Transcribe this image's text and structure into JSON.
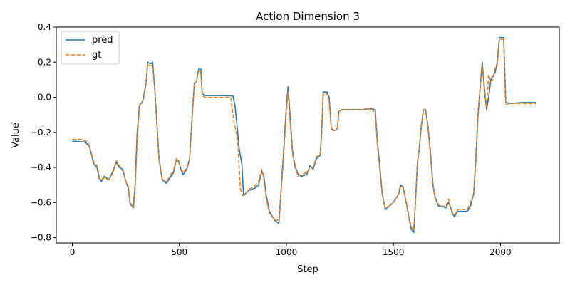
{
  "chart_data": {
    "type": "line",
    "title": "Action Dimension 3",
    "xlabel": "Step",
    "ylabel": "Value",
    "xlim": [
      -75,
      2275
    ],
    "ylim": [
      -0.83,
      0.4
    ],
    "xticks": [
      0,
      500,
      1000,
      1500,
      2000
    ],
    "yticks": [
      -0.8,
      -0.6,
      -0.4,
      -0.2,
      0.0,
      0.2,
      0.4
    ],
    "xtick_labels": [
      "0",
      "500",
      "1000",
      "1500",
      "2000"
    ],
    "ytick_labels": [
      "−0.8",
      "−0.6",
      "−0.4",
      "−0.2",
      "0.0",
      "0.2",
      "0.4"
    ],
    "grid": false,
    "legend_position": "upper-left",
    "series": [
      {
        "name": "pred",
        "color": "#1f77b4",
        "style": "solid",
        "points": [
          [
            0,
            -0.25
          ],
          [
            60,
            -0.255
          ],
          [
            80,
            -0.28
          ],
          [
            100,
            -0.38
          ],
          [
            115,
            -0.4
          ],
          [
            125,
            -0.46
          ],
          [
            135,
            -0.48
          ],
          [
            150,
            -0.45
          ],
          [
            170,
            -0.47
          ],
          [
            190,
            -0.42
          ],
          [
            205,
            -0.37
          ],
          [
            220,
            -0.4
          ],
          [
            235,
            -0.41
          ],
          [
            250,
            -0.48
          ],
          [
            262,
            -0.52
          ],
          [
            270,
            -0.61
          ],
          [
            280,
            -0.62
          ],
          [
            285,
            -0.63
          ],
          [
            293,
            -0.5
          ],
          [
            303,
            -0.2
          ],
          [
            313,
            -0.05
          ],
          [
            330,
            -0.02
          ],
          [
            345,
            0.09
          ],
          [
            352,
            0.2
          ],
          [
            365,
            0.19
          ],
          [
            375,
            0.2
          ],
          [
            385,
            0.05
          ],
          [
            395,
            -0.15
          ],
          [
            405,
            -0.35
          ],
          [
            420,
            -0.47
          ],
          [
            440,
            -0.49
          ],
          [
            460,
            -0.45
          ],
          [
            472,
            -0.43
          ],
          [
            485,
            -0.36
          ],
          [
            495,
            -0.36
          ],
          [
            510,
            -0.42
          ],
          [
            518,
            -0.44
          ],
          [
            535,
            -0.41
          ],
          [
            548,
            -0.35
          ],
          [
            560,
            -0.1
          ],
          [
            570,
            0.08
          ],
          [
            580,
            0.09
          ],
          [
            590,
            0.16
          ],
          [
            600,
            0.16
          ],
          [
            607,
            0.02
          ],
          [
            620,
            0.01
          ],
          [
            650,
            0.01
          ],
          [
            700,
            0.01
          ],
          [
            750,
            0.008
          ],
          [
            760,
            -0.05
          ],
          [
            770,
            -0.17
          ],
          [
            780,
            -0.3
          ],
          [
            792,
            -0.38
          ],
          [
            800,
            -0.56
          ],
          [
            825,
            -0.53
          ],
          [
            850,
            -0.52
          ],
          [
            870,
            -0.5
          ],
          [
            885,
            -0.42
          ],
          [
            895,
            -0.45
          ],
          [
            905,
            -0.55
          ],
          [
            920,
            -0.65
          ],
          [
            930,
            -0.67
          ],
          [
            945,
            -0.7
          ],
          [
            955,
            -0.71
          ],
          [
            965,
            -0.72
          ],
          [
            985,
            -0.35
          ],
          [
            1000,
            -0.05
          ],
          [
            1008,
            0.06
          ],
          [
            1018,
            -0.12
          ],
          [
            1028,
            -0.3
          ],
          [
            1040,
            -0.39
          ],
          [
            1055,
            -0.44
          ],
          [
            1070,
            -0.45
          ],
          [
            1095,
            -0.44
          ],
          [
            1110,
            -0.39
          ],
          [
            1125,
            -0.41
          ],
          [
            1140,
            -0.35
          ],
          [
            1158,
            -0.33
          ],
          [
            1165,
            -0.2
          ],
          [
            1172,
            0.03
          ],
          [
            1190,
            0.03
          ],
          [
            1200,
            0.0
          ],
          [
            1210,
            -0.18
          ],
          [
            1225,
            -0.19
          ],
          [
            1238,
            -0.18
          ],
          [
            1245,
            -0.08
          ],
          [
            1260,
            -0.07
          ],
          [
            1350,
            -0.07
          ],
          [
            1400,
            -0.065
          ],
          [
            1415,
            -0.07
          ],
          [
            1425,
            -0.25
          ],
          [
            1435,
            -0.38
          ],
          [
            1448,
            -0.55
          ],
          [
            1462,
            -0.64
          ],
          [
            1480,
            -0.62
          ],
          [
            1500,
            -0.6
          ],
          [
            1510,
            -0.58
          ],
          [
            1525,
            -0.55
          ],
          [
            1533,
            -0.5
          ],
          [
            1545,
            -0.51
          ],
          [
            1560,
            -0.6
          ],
          [
            1575,
            -0.7
          ],
          [
            1582,
            -0.75
          ],
          [
            1595,
            -0.77
          ],
          [
            1605,
            -0.55
          ],
          [
            1612,
            -0.38
          ],
          [
            1620,
            -0.3
          ],
          [
            1630,
            -0.17
          ],
          [
            1640,
            -0.07
          ],
          [
            1650,
            -0.07
          ],
          [
            1660,
            -0.15
          ],
          [
            1672,
            -0.3
          ],
          [
            1685,
            -0.5
          ],
          [
            1695,
            -0.57
          ],
          [
            1710,
            -0.62
          ],
          [
            1725,
            -0.62
          ],
          [
            1745,
            -0.63
          ],
          [
            1758,
            -0.6
          ],
          [
            1765,
            -0.62
          ],
          [
            1775,
            -0.66
          ],
          [
            1785,
            -0.68
          ],
          [
            1800,
            -0.65
          ],
          [
            1830,
            -0.65
          ],
          [
            1845,
            -0.65
          ],
          [
            1860,
            -0.62
          ],
          [
            1875,
            -0.55
          ],
          [
            1885,
            -0.35
          ],
          [
            1895,
            -0.1
          ],
          [
            1905,
            0.05
          ],
          [
            1915,
            0.2
          ],
          [
            1925,
            0.05
          ],
          [
            1935,
            -0.07
          ],
          [
            1945,
            0.0
          ],
          [
            1955,
            0.1
          ],
          [
            1965,
            0.12
          ],
          [
            1975,
            0.14
          ],
          [
            1985,
            0.2
          ],
          [
            1995,
            0.34
          ],
          [
            2015,
            0.34
          ],
          [
            2025,
            -0.03
          ],
          [
            2050,
            -0.035
          ],
          [
            2100,
            -0.03
          ],
          [
            2165,
            -0.03
          ]
        ]
      },
      {
        "name": "gt",
        "color": "#ff7f0e",
        "style": "dashed",
        "points": [
          [
            0,
            -0.24
          ],
          [
            40,
            -0.24
          ],
          [
            65,
            -0.25
          ],
          [
            75,
            -0.26
          ],
          [
            85,
            -0.3
          ],
          [
            100,
            -0.37
          ],
          [
            115,
            -0.39
          ],
          [
            130,
            -0.47
          ],
          [
            150,
            -0.46
          ],
          [
            170,
            -0.47
          ],
          [
            190,
            -0.43
          ],
          [
            205,
            -0.36
          ],
          [
            220,
            -0.39
          ],
          [
            235,
            -0.42
          ],
          [
            250,
            -0.48
          ],
          [
            262,
            -0.51
          ],
          [
            270,
            -0.6
          ],
          [
            282,
            -0.62
          ],
          [
            287,
            -0.63
          ],
          [
            295,
            -0.48
          ],
          [
            305,
            -0.2
          ],
          [
            315,
            -0.04
          ],
          [
            330,
            -0.02
          ],
          [
            345,
            0.08
          ],
          [
            352,
            0.19
          ],
          [
            360,
            0.18
          ],
          [
            375,
            0.18
          ],
          [
            385,
            0.04
          ],
          [
            395,
            -0.16
          ],
          [
            405,
            -0.36
          ],
          [
            420,
            -0.47
          ],
          [
            440,
            -0.48
          ],
          [
            460,
            -0.44
          ],
          [
            472,
            -0.42
          ],
          [
            485,
            -0.35
          ],
          [
            495,
            -0.37
          ],
          [
            510,
            -0.41
          ],
          [
            518,
            -0.43
          ],
          [
            535,
            -0.4
          ],
          [
            548,
            -0.35
          ],
          [
            560,
            -0.12
          ],
          [
            570,
            0.07
          ],
          [
            580,
            0.09
          ],
          [
            588,
            0.15
          ],
          [
            600,
            0.15
          ],
          [
            607,
            0.01
          ],
          [
            620,
            0.0
          ],
          [
            650,
            0.0
          ],
          [
            700,
            0.0
          ],
          [
            740,
            0.0
          ],
          [
            755,
            -0.14
          ],
          [
            765,
            -0.19
          ],
          [
            775,
            -0.3
          ],
          [
            785,
            -0.52
          ],
          [
            795,
            -0.56
          ],
          [
            810,
            -0.55
          ],
          [
            830,
            -0.52
          ],
          [
            850,
            -0.51
          ],
          [
            870,
            -0.48
          ],
          [
            885,
            -0.41
          ],
          [
            895,
            -0.47
          ],
          [
            905,
            -0.57
          ],
          [
            920,
            -0.66
          ],
          [
            935,
            -0.68
          ],
          [
            945,
            -0.7
          ],
          [
            955,
            -0.7
          ],
          [
            965,
            -0.7
          ],
          [
            985,
            -0.38
          ],
          [
            1000,
            -0.08
          ],
          [
            1008,
            0.03
          ],
          [
            1018,
            -0.15
          ],
          [
            1028,
            -0.32
          ],
          [
            1040,
            -0.4
          ],
          [
            1055,
            -0.45
          ],
          [
            1070,
            -0.44
          ],
          [
            1095,
            -0.43
          ],
          [
            1110,
            -0.4
          ],
          [
            1125,
            -0.4
          ],
          [
            1140,
            -0.34
          ],
          [
            1158,
            -0.32
          ],
          [
            1165,
            -0.2
          ],
          [
            1172,
            0.02
          ],
          [
            1190,
            0.02
          ],
          [
            1200,
            -0.02
          ],
          [
            1210,
            -0.19
          ],
          [
            1225,
            -0.19
          ],
          [
            1238,
            -0.18
          ],
          [
            1245,
            -0.08
          ],
          [
            1260,
            -0.07
          ],
          [
            1350,
            -0.07
          ],
          [
            1400,
            -0.065
          ],
          [
            1415,
            -0.09
          ],
          [
            1425,
            -0.27
          ],
          [
            1435,
            -0.4
          ],
          [
            1448,
            -0.56
          ],
          [
            1462,
            -0.63
          ],
          [
            1480,
            -0.62
          ],
          [
            1500,
            -0.6
          ],
          [
            1510,
            -0.58
          ],
          [
            1525,
            -0.55
          ],
          [
            1533,
            -0.51
          ],
          [
            1545,
            -0.51
          ],
          [
            1560,
            -0.6
          ],
          [
            1575,
            -0.7
          ],
          [
            1582,
            -0.73
          ],
          [
            1595,
            -0.76
          ],
          [
            1605,
            -0.55
          ],
          [
            1612,
            -0.37
          ],
          [
            1620,
            -0.3
          ],
          [
            1630,
            -0.18
          ],
          [
            1640,
            -0.07
          ],
          [
            1650,
            -0.07
          ],
          [
            1660,
            -0.16
          ],
          [
            1672,
            -0.32
          ],
          [
            1685,
            -0.51
          ],
          [
            1695,
            -0.58
          ],
          [
            1710,
            -0.61
          ],
          [
            1725,
            -0.62
          ],
          [
            1745,
            -0.62
          ],
          [
            1758,
            -0.58
          ],
          [
            1765,
            -0.62
          ],
          [
            1775,
            -0.65
          ],
          [
            1785,
            -0.67
          ],
          [
            1800,
            -0.64
          ],
          [
            1830,
            -0.64
          ],
          [
            1845,
            -0.64
          ],
          [
            1860,
            -0.6
          ],
          [
            1875,
            -0.55
          ],
          [
            1885,
            -0.37
          ],
          [
            1895,
            -0.12
          ],
          [
            1905,
            0.05
          ],
          [
            1915,
            0.18
          ],
          [
            1925,
            0.03
          ],
          [
            1935,
            -0.06
          ],
          [
            1945,
            0.13
          ],
          [
            1955,
            0.09
          ],
          [
            1965,
            0.1
          ],
          [
            1975,
            0.17
          ],
          [
            1985,
            0.18
          ],
          [
            1995,
            0.33
          ],
          [
            2015,
            0.33
          ],
          [
            2025,
            -0.04
          ],
          [
            2050,
            -0.035
          ],
          [
            2100,
            -0.035
          ],
          [
            2165,
            -0.035
          ]
        ]
      }
    ]
  }
}
